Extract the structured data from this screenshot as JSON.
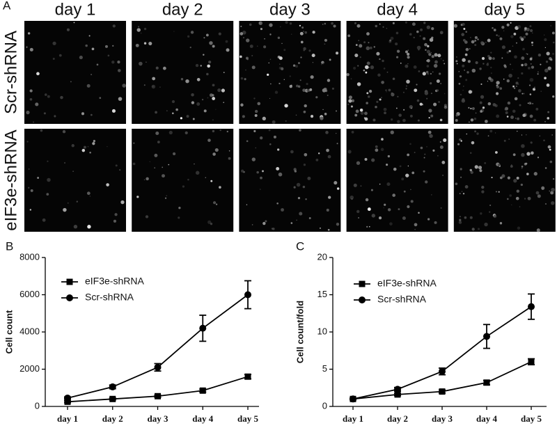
{
  "panel_a": {
    "label": "A",
    "columns": [
      "day 1",
      "day 2",
      "day 3",
      "day 4",
      "day 5"
    ],
    "rows": [
      "Scr-shRNA",
      "eIF3e-shRNA"
    ]
  },
  "chart_data": [
    {
      "type": "line",
      "label": "B",
      "y_label": "Cell count",
      "categories": [
        "day 1",
        "day 2",
        "day 3",
        "day 4",
        "day 5"
      ],
      "ylim": [
        0,
        8000
      ],
      "yticks": [
        0,
        2000,
        4000,
        6000,
        8000
      ],
      "legend": "upper-left",
      "series": [
        {
          "name": "eIF3e-shRNA",
          "color": "#000000",
          "marker": "square",
          "values": [
            250,
            400,
            550,
            850,
            1600
          ],
          "errors": [
            50,
            50,
            60,
            80,
            120
          ]
        },
        {
          "name": "Scr-shRNA",
          "color": "#000000",
          "marker": "circle",
          "values": [
            450,
            1050,
            2100,
            4200,
            6000
          ],
          "errors": [
            60,
            100,
            200,
            700,
            750
          ]
        }
      ]
    },
    {
      "type": "line",
      "label": "C",
      "y_label": "Cell count/fold",
      "categories": [
        "day 1",
        "day 2",
        "day 3",
        "day 4",
        "day 5"
      ],
      "ylim": [
        0,
        20
      ],
      "yticks": [
        0,
        5,
        10,
        15,
        20
      ],
      "legend": "upper-left",
      "series": [
        {
          "name": "eIF3e-shRNA",
          "color": "#000000",
          "marker": "square",
          "values": [
            1,
            1.6,
            2,
            3.2,
            6
          ],
          "errors": [
            0.1,
            0.15,
            0.2,
            0.3,
            0.4
          ]
        },
        {
          "name": "Scr-shRNA",
          "color": "#000000",
          "marker": "circle",
          "values": [
            1,
            2.3,
            4.7,
            9.4,
            13.4
          ],
          "errors": [
            0.1,
            0.25,
            0.45,
            1.6,
            1.7
          ]
        }
      ]
    }
  ]
}
